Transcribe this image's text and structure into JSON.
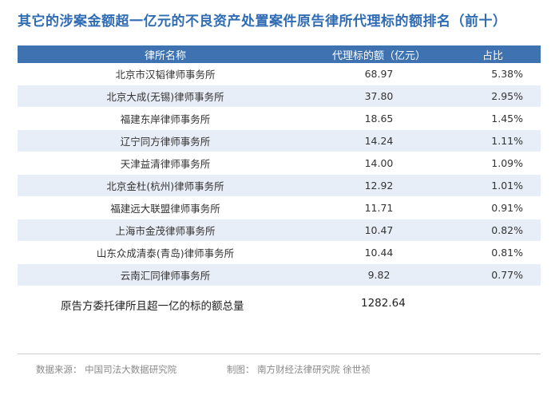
{
  "title": "其它的涉案金额超一亿元的不良资产处置案件原告律所代理标的额排名（前十）",
  "table": {
    "headers": [
      "律所名称",
      "代理标的额（亿元）",
      "占比"
    ]
  },
  "chart_data": {
    "type": "table",
    "title": "其它的涉案金额超一亿元的不良资产处置案件原告律所代理标的额排名（前十）",
    "columns": [
      "律所名称",
      "代理标的额（亿元）",
      "占比"
    ],
    "rows": [
      {
        "name": "北京市汉韬律师事务所",
        "amount": "68.97",
        "share": "5.38%"
      },
      {
        "name": "北京大成(无锡)律师事务所",
        "amount": "37.80",
        "share": "2.95%"
      },
      {
        "name": "福建东岸律师事务所",
        "amount": "18.65",
        "share": "1.45%"
      },
      {
        "name": "辽宁同方律师事务所",
        "amount": "14.24",
        "share": "1.11%"
      },
      {
        "name": "天津益清律师事务所",
        "amount": "14.00",
        "share": "1.09%"
      },
      {
        "name": "北京金杜(杭州)律师事务所",
        "amount": "12.92",
        "share": "1.01%"
      },
      {
        "name": "福建远大联盟律师事务所",
        "amount": "11.71",
        "share": "0.91%"
      },
      {
        "name": "上海市金茂律师事务所",
        "amount": "10.47",
        "share": "0.82%"
      },
      {
        "name": "山东众成清泰(青岛)律师事务所",
        "amount": "10.44",
        "share": "0.81%"
      },
      {
        "name": "云南汇同律师事务所",
        "amount": "9.82",
        "share": "0.77%"
      }
    ],
    "total_label": "原告方委托律所且超一亿的标的额总量",
    "total_value": "1282.64"
  },
  "footer": {
    "source": "数据来源：  中国司法大数据研究院",
    "credit": "制图：  南方财经法律研究院  徐世祯"
  },
  "colors": {
    "title": "#2f6cb3",
    "header_bg": "#3e72b0",
    "stripe": "#e8eef7"
  }
}
